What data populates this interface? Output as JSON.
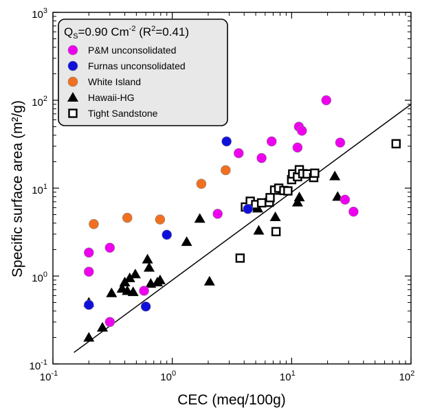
{
  "chart_data": {
    "type": "scatter",
    "title": "",
    "xlabel": "CEC (meq/100g)",
    "ylabel": "Specific surface area (m²/g)",
    "xscale": "log",
    "yscale": "log",
    "xlim": [
      0.1,
      100
    ],
    "ylim": [
      0.1,
      1000
    ],
    "grid": false,
    "legend_position": "top-left",
    "x_ticks": [
      {
        "base": "10",
        "exp": "-1"
      },
      {
        "base": "10",
        "exp": "0"
      },
      {
        "base": "10",
        "exp": "1"
      },
      {
        "base": "10",
        "exp": "2"
      }
    ],
    "y_ticks": [
      {
        "base": "10",
        "exp": "-1"
      },
      {
        "base": "10",
        "exp": "0"
      },
      {
        "base": "10",
        "exp": "1"
      },
      {
        "base": "10",
        "exp": "2"
      },
      {
        "base": "10",
        "exp": "3"
      }
    ],
    "annotation": {
      "q": "Q",
      "q_sub": "S",
      "equals": "=0.90 Cm",
      "exp": "-2",
      "r_open": " (R",
      "r_exp": "2",
      "r_close": "=0.41)"
    },
    "fit_line": {
      "slope_coefficient": 0.9,
      "x_range": [
        0.15,
        100
      ]
    },
    "series": [
      {
        "name": "P&M unconsolidated",
        "marker": "circle",
        "color": "#ee00ee",
        "points": [
          [
            0.2,
            1.85
          ],
          [
            0.2,
            1.12
          ],
          [
            0.3,
            2.1
          ],
          [
            0.3,
            0.3
          ],
          [
            0.58,
            0.68
          ],
          [
            2.4,
            5.1
          ],
          [
            3.6,
            25
          ],
          [
            5.6,
            22
          ],
          [
            6.8,
            34
          ],
          [
            11.2,
            29
          ],
          [
            11.5,
            50
          ],
          [
            12.2,
            45
          ],
          [
            19.5,
            100
          ],
          [
            25.5,
            33
          ],
          [
            28,
            7.4
          ],
          [
            33,
            5.4
          ]
        ]
      },
      {
        "name": "Furnas unconsolidated",
        "marker": "circle",
        "color": "#1010dd",
        "points": [
          [
            0.2,
            0.47
          ],
          [
            0.6,
            0.45
          ],
          [
            0.9,
            2.95
          ],
          [
            2.85,
            34
          ],
          [
            4.3,
            5.8
          ]
        ]
      },
      {
        "name": "White Island",
        "marker": "circle",
        "color": "#f07020",
        "points": [
          [
            0.22,
            3.9
          ],
          [
            0.42,
            4.6
          ],
          [
            0.79,
            4.4
          ],
          [
            1.75,
            11.2
          ],
          [
            2.8,
            16
          ]
        ]
      },
      {
        "name": "Hawaii-HG",
        "marker": "triangle",
        "color": "#000000",
        "points": [
          [
            0.2,
            0.5
          ],
          [
            0.2,
            0.2
          ],
          [
            0.26,
            0.26
          ],
          [
            0.31,
            0.64
          ],
          [
            0.38,
            0.72
          ],
          [
            0.4,
            0.85
          ],
          [
            0.42,
            0.68
          ],
          [
            0.44,
            0.95
          ],
          [
            0.47,
            0.66
          ],
          [
            0.49,
            1.05
          ],
          [
            0.62,
            1.55
          ],
          [
            0.64,
            1.25
          ],
          [
            0.66,
            0.82
          ],
          [
            0.75,
            0.85
          ],
          [
            0.79,
            0.9
          ],
          [
            1.32,
            2.45
          ],
          [
            1.7,
            4.5
          ],
          [
            2.05,
            0.87
          ],
          [
            4.5,
            6.2
          ],
          [
            5.2,
            5.9
          ],
          [
            5.3,
            3.3
          ],
          [
            7.3,
            4.7
          ],
          [
            11.2,
            6.9
          ],
          [
            11.6,
            7.9
          ],
          [
            23,
            13.7
          ],
          [
            24.3,
            8
          ]
        ]
      },
      {
        "name": "Tight Sandstone",
        "marker": "square-open",
        "color": "#000000",
        "points": [
          [
            3.7,
            1.6
          ],
          [
            4.1,
            6.1
          ],
          [
            4.5,
            7.1
          ],
          [
            5,
            6.5
          ],
          [
            5.6,
            6.8
          ],
          [
            6.5,
            6.9
          ],
          [
            6.6,
            7.8
          ],
          [
            7.2,
            9.5
          ],
          [
            7.4,
            3.2
          ],
          [
            7.8,
            10
          ],
          [
            8.6,
            9.4
          ],
          [
            9.3,
            9.3
          ],
          [
            10,
            12.5
          ],
          [
            10.2,
            14.5
          ],
          [
            11.2,
            13.5
          ],
          [
            11.6,
            16.2
          ],
          [
            12.4,
            14.6
          ],
          [
            13.5,
            14.5
          ],
          [
            15.3,
            13.2
          ],
          [
            15.6,
            14.8
          ],
          [
            75,
            32
          ]
        ]
      }
    ]
  }
}
